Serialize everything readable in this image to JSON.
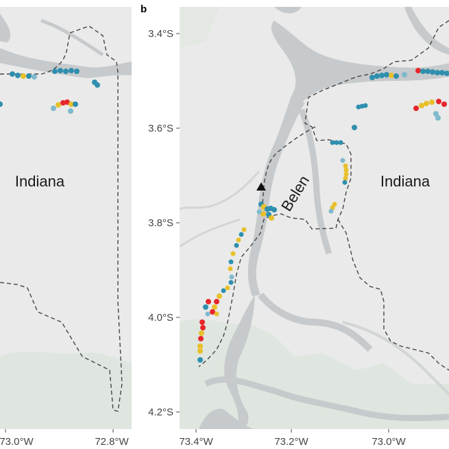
{
  "figure": {
    "panel_b_letter": "b"
  },
  "panel_a": {
    "x_ticks": [
      "73.0°W",
      "72.8°W"
    ],
    "region_label": "Indiana"
  },
  "panel_b": {
    "y_ticks": [
      "3.4°S",
      "3.6°S",
      "3.8°S",
      "4.0°S",
      "4.2°S"
    ],
    "x_ticks": [
      "73.4°W",
      "73.2°W",
      "73.0°W"
    ],
    "region_labels": [
      "Belen",
      "Indiana"
    ],
    "marker": "triangle-marker"
  },
  "colors": {
    "map_background": "#e9eae9",
    "river": "#c7cacc",
    "red_points": "#e8262b",
    "yellow_points": "#e8c02a",
    "blue_points": "#2f8fae",
    "boundary": "#444444"
  }
}
